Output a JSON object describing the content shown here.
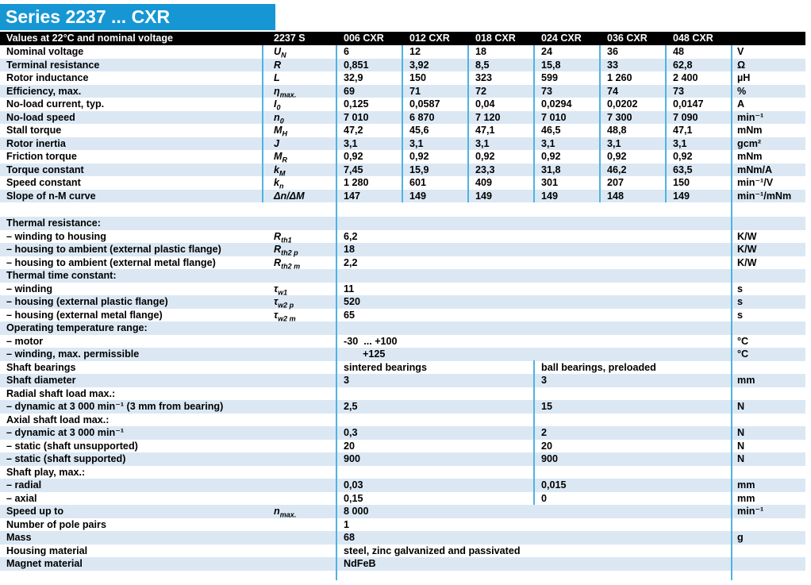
{
  "title": "Series 2237 ... CXR",
  "colors": {
    "accent_blue": "#1697d4",
    "row_stripe": "#dbe8f4",
    "divider_blue": "#4fb3e2",
    "header_bg": "#000000"
  },
  "columns_header": {
    "label": "Values at 22°C and nominal voltage",
    "series": "2237 S",
    "variants": [
      "006 CXR",
      "012 CXR",
      "018 CXR",
      "024 CXR",
      "036 CXR",
      "048 CXR"
    ]
  },
  "table": {
    "rows": [
      {
        "type": "six",
        "shaded": false,
        "label": "Nominal voltage",
        "sym": "U",
        "sub": "N",
        "values": [
          "6",
          "12",
          "18",
          "24",
          "36",
          "48"
        ],
        "unit": "V"
      },
      {
        "type": "six",
        "shaded": true,
        "label": "Terminal resistance",
        "sym": "R",
        "sub": "",
        "values": [
          "0,851",
          "3,92",
          "8,5",
          "15,8",
          "33",
          "62,8"
        ],
        "unit": "Ω"
      },
      {
        "type": "six",
        "shaded": false,
        "label": "Rotor inductance",
        "sym": "L",
        "sub": "",
        "values": [
          "32,9",
          "150",
          "323",
          "599",
          "1 260",
          "2 400"
        ],
        "unit": "µH"
      },
      {
        "type": "six",
        "shaded": true,
        "label": "Efficiency, max.",
        "sym": "η",
        "sub": "max.",
        "values": [
          "69",
          "71",
          "72",
          "73",
          "74",
          "73"
        ],
        "unit": "%"
      },
      {
        "type": "six",
        "shaded": false,
        "label": "No-load current, typ.",
        "sym": "I",
        "sub": "0",
        "values": [
          "0,125",
          "0,0587",
          "0,04",
          "0,0294",
          "0,0202",
          "0,0147"
        ],
        "unit": "A"
      },
      {
        "type": "six",
        "shaded": true,
        "label": "No-load speed",
        "sym": "n",
        "sub": "0",
        "values": [
          "7 010",
          "6 870",
          "7 120",
          "7 010",
          "7 300",
          "7 090"
        ],
        "unit": "min⁻¹"
      },
      {
        "type": "six",
        "shaded": false,
        "label": "Stall torque",
        "sym": "M",
        "sub": "H",
        "values": [
          "47,2",
          "45,6",
          "47,1",
          "46,5",
          "48,8",
          "47,1"
        ],
        "unit": "mNm"
      },
      {
        "type": "six",
        "shaded": true,
        "label": "Rotor inertia",
        "sym": "J",
        "sub": "",
        "values": [
          "3,1",
          "3,1",
          "3,1",
          "3,1",
          "3,1",
          "3,1"
        ],
        "unit": "gcm²"
      },
      {
        "type": "six",
        "shaded": false,
        "label": "Friction torque",
        "sym": "M",
        "sub": "R",
        "values": [
          "0,92",
          "0,92",
          "0,92",
          "0,92",
          "0,92",
          "0,92"
        ],
        "unit": "mNm"
      },
      {
        "type": "six",
        "shaded": true,
        "label": "Torque constant",
        "sym": "k",
        "sub": "M",
        "values": [
          "7,45",
          "15,9",
          "23,3",
          "31,8",
          "46,2",
          "63,5"
        ],
        "unit": "mNm/A"
      },
      {
        "type": "six",
        "shaded": false,
        "label": "Speed constant",
        "sym": "k",
        "sub": "n",
        "values": [
          "1 280",
          "601",
          "409",
          "301",
          "207",
          "150"
        ],
        "unit": "min⁻¹/V"
      },
      {
        "type": "six",
        "shaded": true,
        "label": "Slope of n-M curve",
        "sym": "Δn/ΔM",
        "sub": "",
        "values": [
          "147",
          "149",
          "149",
          "149",
          "148",
          "149"
        ],
        "unit": "min⁻¹/mNm"
      },
      {
        "type": "gap",
        "shaded": false
      },
      {
        "type": "header",
        "shaded": true,
        "label": "Thermal resistance:"
      },
      {
        "type": "span",
        "shaded": false,
        "label": "– winding to housing",
        "sym": "R",
        "sub": "th1",
        "value": "6,2",
        "unit": "K/W"
      },
      {
        "type": "span",
        "shaded": true,
        "label": "– housing to ambient (external plastic flange)",
        "sym": "R",
        "sub": "th2 p",
        "value": "18",
        "unit": "K/W"
      },
      {
        "type": "span",
        "shaded": false,
        "label": "– housing to ambient (external metal flange)",
        "sym": "R",
        "sub": "th2 m",
        "value": "2,2",
        "unit": "K/W"
      },
      {
        "type": "header",
        "shaded": true,
        "label": "Thermal time constant:"
      },
      {
        "type": "span",
        "shaded": false,
        "label": "– winding",
        "sym": "τ",
        "sub": "w1",
        "value": "11",
        "unit": "s"
      },
      {
        "type": "span",
        "shaded": true,
        "label": "– housing (external plastic flange)",
        "sym": "τ",
        "sub": "w2 p",
        "value": "520",
        "unit": "s"
      },
      {
        "type": "span",
        "shaded": false,
        "label": "– housing (external metal flange)",
        "sym": "τ",
        "sub": "w2 m",
        "value": "65",
        "unit": "s"
      },
      {
        "type": "header",
        "shaded": true,
        "label": "Operating temperature range:"
      },
      {
        "type": "span",
        "shaded": false,
        "label": "– motor",
        "sym": "",
        "sub": "",
        "value": "-30  ... +100",
        "unit": "°C"
      },
      {
        "type": "span",
        "shaded": true,
        "label": "– winding, max. permissible",
        "sym": "",
        "sub": "",
        "value": "+125",
        "unit": "°C",
        "indent": true
      },
      {
        "type": "two",
        "shaded": false,
        "label": "Shaft bearings",
        "left": "sintered bearings",
        "right": "ball bearings, preloaded",
        "unit": ""
      },
      {
        "type": "two",
        "shaded": true,
        "label": "Shaft diameter",
        "left": "3",
        "right": "3",
        "unit": "mm"
      },
      {
        "type": "header2",
        "shaded": false,
        "label": "Radial shaft load max.:"
      },
      {
        "type": "two",
        "shaded": true,
        "label": "– dynamic at 3 000 min⁻¹ (3 mm from bearing)",
        "left": "2,5",
        "right": "15",
        "unit": "N"
      },
      {
        "type": "header2",
        "shaded": false,
        "label": "Axial shaft load max.:"
      },
      {
        "type": "two",
        "shaded": true,
        "label": "– dynamic at 3 000 min⁻¹",
        "left": "0,3",
        "right": "2",
        "unit": "N"
      },
      {
        "type": "two",
        "shaded": false,
        "label": "– static (shaft unsupported)",
        "left": "20",
        "right": "20",
        "unit": "N"
      },
      {
        "type": "two",
        "shaded": true,
        "label": "– static (shaft supported)",
        "left": "900",
        "right": "900",
        "unit": "N"
      },
      {
        "type": "header2",
        "shaded": false,
        "label": "Shaft play, max.:"
      },
      {
        "type": "two",
        "shaded": true,
        "label": "– radial",
        "left": "0,03",
        "right": "0,015",
        "unit": "mm"
      },
      {
        "type": "two",
        "shaded": false,
        "label": "– axial",
        "left": "0,15",
        "right": "0",
        "unit": "mm"
      },
      {
        "type": "span",
        "shaded": true,
        "label": "Speed up to",
        "sym": "n",
        "sub": "max.",
        "value": "8 000",
        "unit": "min⁻¹"
      },
      {
        "type": "span",
        "shaded": false,
        "label": "Number of pole pairs",
        "sym": "",
        "sub": "",
        "value": "1",
        "unit": ""
      },
      {
        "type": "span",
        "shaded": true,
        "label": "Mass",
        "sym": "",
        "sub": "",
        "value": "68",
        "unit": "g"
      },
      {
        "type": "span",
        "shaded": false,
        "label": "Housing material",
        "sym": "",
        "sub": "",
        "value": "steel, zinc galvanized and passivated",
        "unit": ""
      },
      {
        "type": "span",
        "shaded": true,
        "label": "Magnet material",
        "sym": "",
        "sub": "",
        "value": "NdFeB",
        "unit": ""
      }
    ]
  }
}
